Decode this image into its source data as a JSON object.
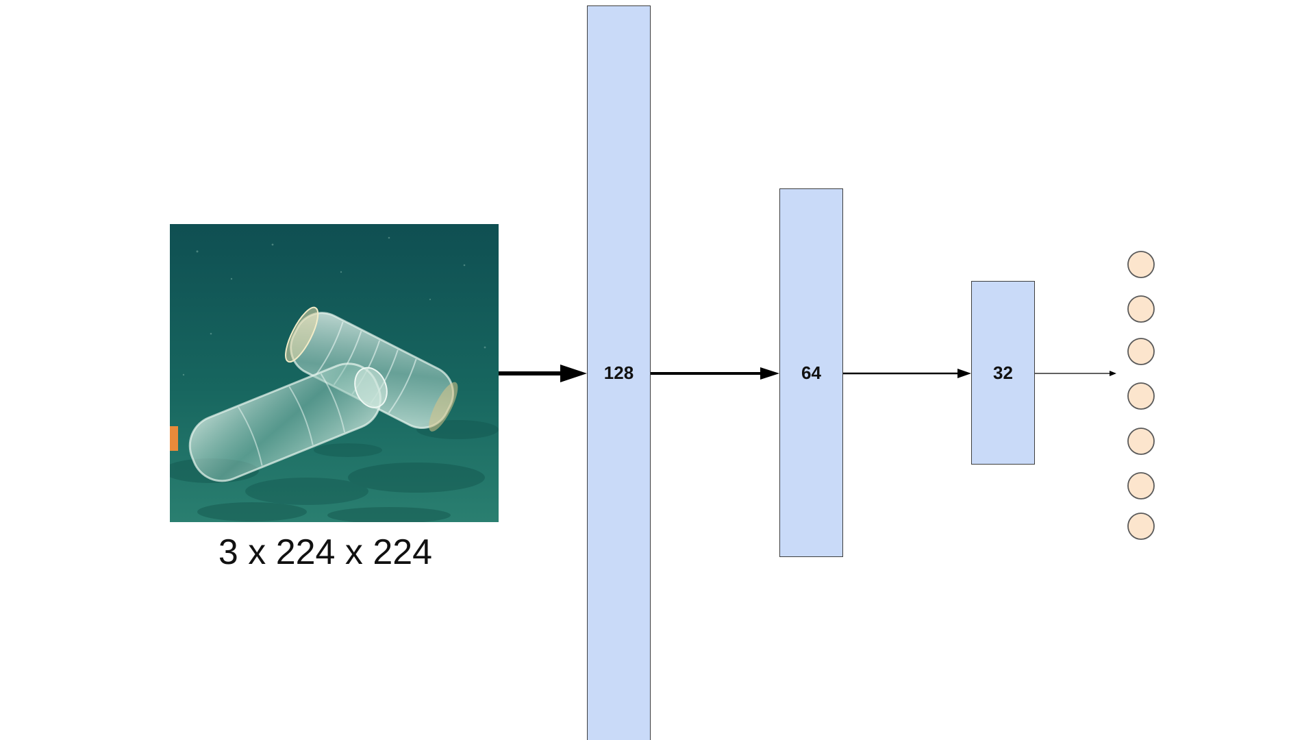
{
  "input": {
    "caption": "3 x 224 x 224",
    "image_subject": "underwater plastic bottles"
  },
  "layers": [
    {
      "label": "128"
    },
    {
      "label": "64"
    },
    {
      "label": "32"
    }
  ],
  "output": {
    "node_count": 7
  },
  "colors": {
    "layer_fill": "#c9daf8",
    "layer_border": "#3c3c3c",
    "output_node_fill": "#fce5cd",
    "output_node_border": "#595959",
    "arrow": "#000000",
    "water_dark": "#0f4d50",
    "water_light": "#2a7d72"
  }
}
